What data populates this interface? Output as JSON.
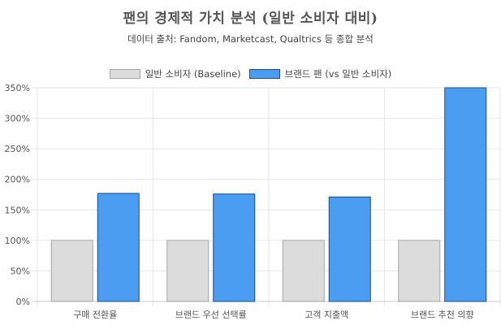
{
  "colors": {
    "baseline_fill": "#dcdcdc",
    "baseline_border": "#a6a6a6",
    "fan_fill": "#4a9df0",
    "fan_border": "#1a4f8a",
    "grid": "#e6e6e6"
  },
  "chart_data": {
    "type": "bar",
    "title": "팬의 경제적 가치 분석 (일반 소비자 대비)",
    "subtitle": "데이터 출처: Fandom, Marketcast, Qualtrics 등 종합 분석",
    "categories": [
      "구매 전환율",
      "브랜드 우선 선택률",
      "고객 지출액",
      "브랜드 추천 의향"
    ],
    "series": [
      {
        "name": "일반 소비자 (Baseline)",
        "values": [
          100,
          100,
          100,
          100
        ]
      },
      {
        "name": "브랜드 팬 (vs 일반 소비자)",
        "values": [
          177,
          176,
          171,
          350
        ]
      }
    ],
    "ylim": [
      0,
      350
    ],
    "yticks": [
      0,
      50,
      100,
      150,
      200,
      250,
      300,
      350
    ],
    "ytick_suffix": "%",
    "xlabel": "",
    "ylabel": "",
    "grid": true,
    "legend_position": "top"
  }
}
